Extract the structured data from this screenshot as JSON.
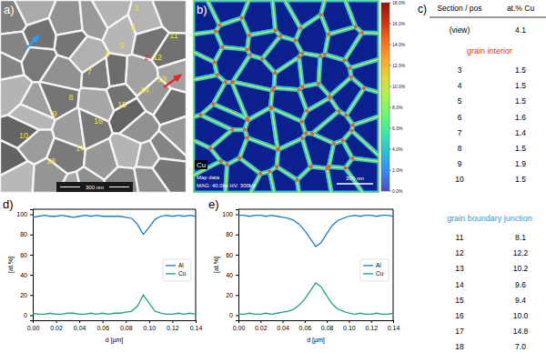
{
  "micrograph": {
    "panel_label": "a)",
    "grain_labels": [
      "3",
      "4",
      "5",
      "6",
      "7",
      "8",
      "9",
      "10",
      "11",
      "12",
      "13",
      "14",
      "15",
      "16",
      "17",
      "18"
    ],
    "position_labels": [
      {
        "text": "2",
        "color": "#e8262a"
      }
    ],
    "scale_bar": "300 nm"
  },
  "map": {
    "panel_label": "b)",
    "element": "Cu",
    "info": [
      "Map data",
      "MAG: 40.0kx HV: 300kV"
    ],
    "scale_bar": "300 nm",
    "colorbar": {
      "range": [
        0,
        18
      ],
      "ticks": [
        {
          "value": 0,
          "label": "0.0%"
        },
        {
          "value": 2,
          "label": "2.0%"
        },
        {
          "value": 4,
          "label": "4.0%"
        },
        {
          "value": 6,
          "label": "6.0%"
        },
        {
          "value": 8,
          "label": "8.0%"
        },
        {
          "value": 10,
          "label": "10.0%"
        },
        {
          "value": 12,
          "label": "12.0%"
        },
        {
          "value": 14,
          "label": "14.0%"
        },
        {
          "value": 16,
          "label": "16.0%"
        },
        {
          "value": 18,
          "label": "18.0%"
        }
      ]
    }
  },
  "table": {
    "panel_label": "c)",
    "header": [
      "Section / pos",
      "at.% Cu"
    ],
    "sections": [
      {
        "rows": [
          [
            "(view)",
            "4.1"
          ]
        ]
      },
      {
        "title": "grain interior",
        "color": "#d9342b",
        "rows": [
          [
            "3",
            "1.5"
          ],
          [
            "4",
            "1.5"
          ],
          [
            "5",
            "1.5"
          ],
          [
            "6",
            "1.6"
          ],
          [
            "7",
            "1.4"
          ],
          [
            "8",
            "1.5"
          ],
          [
            "9",
            "1.9"
          ],
          [
            "10",
            "1.5"
          ]
        ]
      },
      {
        "title": "grain boundary junction",
        "color": "#2a9fd6",
        "rows": [
          [
            "11",
            "8.1"
          ],
          [
            "12",
            "12.2"
          ],
          [
            "13",
            "10.2"
          ],
          [
            "14",
            "9.6"
          ],
          [
            "15",
            "9.4"
          ],
          [
            "16",
            "10.0"
          ],
          [
            "17",
            "14.8"
          ],
          [
            "18",
            "7.0"
          ]
        ]
      }
    ]
  },
  "chart_data": [
    {
      "type": "line",
      "panel_label": "d)",
      "x_label": "d [µm]",
      "y_label": "[at.%]",
      "x": [
        0,
        0.005,
        0.01,
        0.015,
        0.02,
        0.025,
        0.03,
        0.035,
        0.04,
        0.045,
        0.05,
        0.055,
        0.06,
        0.065,
        0.07,
        0.075,
        0.08,
        0.085,
        0.09,
        0.095,
        0.1,
        0.105,
        0.11,
        0.115,
        0.12,
        0.125,
        0.13,
        0.135,
        0.14
      ],
      "series": [
        {
          "name": "Al",
          "color": "#1f7fc4",
          "values": [
            97,
            98,
            99,
            98,
            98,
            99,
            98,
            97,
            98,
            99,
            98,
            99,
            98,
            98,
            98,
            98,
            97,
            96,
            90,
            80,
            87,
            95,
            98,
            99,
            98,
            99,
            98,
            99,
            98
          ]
        },
        {
          "name": "Cu",
          "color": "#1aa588",
          "values": [
            2,
            1,
            1,
            2,
            1,
            1,
            2,
            2,
            1,
            1,
            2,
            1,
            2,
            1,
            2,
            2,
            3,
            4,
            9,
            20,
            12,
            4,
            2,
            1,
            1,
            2,
            1,
            2,
            1
          ]
        }
      ],
      "xlim": [
        0,
        0.14
      ],
      "xticks": [
        {
          "value": 0,
          "label": "0.00"
        },
        {
          "value": 0.02,
          "label": "0.02"
        },
        {
          "value": 0.04,
          "label": "0.04"
        },
        {
          "value": 0.06,
          "label": "0.06"
        },
        {
          "value": 0.08,
          "label": "0.08"
        },
        {
          "value": 0.1,
          "label": "0.10"
        },
        {
          "value": 0.12,
          "label": "0.12"
        },
        {
          "value": 0.14,
          "label": "0.14"
        }
      ],
      "ylim": [
        -5,
        105
      ],
      "yticks": [
        0,
        20,
        40,
        60,
        80,
        100
      ],
      "legend": "right",
      "grid": false
    },
    {
      "type": "line",
      "panel_label": "e)",
      "x_label": "d [µm]",
      "y_label": "[at.%]",
      "x": [
        0,
        0.005,
        0.01,
        0.015,
        0.02,
        0.025,
        0.03,
        0.035,
        0.04,
        0.045,
        0.05,
        0.055,
        0.06,
        0.065,
        0.07,
        0.075,
        0.08,
        0.085,
        0.09,
        0.095,
        0.1,
        0.105,
        0.11,
        0.115,
        0.12,
        0.125,
        0.13,
        0.135,
        0.14
      ],
      "series": [
        {
          "name": "Al",
          "color": "#1f7fc4",
          "values": [
            99,
            99,
            98,
            99,
            99,
            98,
            99,
            98,
            97,
            96,
            94,
            90,
            84,
            76,
            68,
            72,
            81,
            89,
            94,
            96,
            98,
            99,
            98,
            99,
            99,
            98,
            99,
            99,
            98
          ]
        },
        {
          "name": "Cu",
          "color": "#1aa588",
          "values": [
            1,
            1,
            2,
            1,
            1,
            2,
            1,
            2,
            3,
            4,
            6,
            10,
            16,
            24,
            32,
            28,
            19,
            11,
            6,
            4,
            2,
            1,
            2,
            1,
            1,
            2,
            1,
            1,
            2
          ]
        }
      ],
      "xlim": [
        0,
        0.14
      ],
      "xticks": [
        {
          "value": 0,
          "label": "0.00"
        },
        {
          "value": 0.02,
          "label": "0.02"
        },
        {
          "value": 0.04,
          "label": "0.04"
        },
        {
          "value": 0.06,
          "label": "0.06"
        },
        {
          "value": 0.08,
          "label": "0.08"
        },
        {
          "value": 0.1,
          "label": "0.10"
        },
        {
          "value": 0.12,
          "label": "0.12"
        },
        {
          "value": 0.14,
          "label": "0.14"
        }
      ],
      "ylim": [
        -5,
        105
      ],
      "yticks": [
        0,
        20,
        40,
        60,
        80,
        100
      ],
      "legend": "right",
      "grid": false
    }
  ]
}
